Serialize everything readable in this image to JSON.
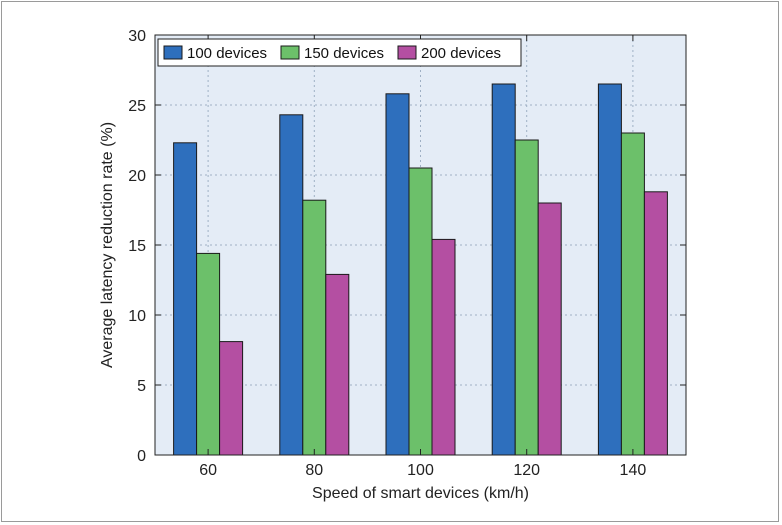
{
  "chart_data": {
    "type": "bar",
    "title": "",
    "xlabel": "Speed of smart devices (km/h)",
    "ylabel": "Average latency reduction rate (%)",
    "categories": [
      "60",
      "80",
      "100",
      "120",
      "140"
    ],
    "ylim": [
      0,
      30
    ],
    "yticks": [
      0,
      5,
      10,
      15,
      20,
      25,
      30
    ],
    "grid": true,
    "legend_position": "top-left",
    "series": [
      {
        "name": "100 devices",
        "color": "#2e6fbd",
        "values": [
          22.3,
          24.3,
          25.8,
          26.5,
          26.5
        ]
      },
      {
        "name": "150 devices",
        "color": "#6cc06a",
        "values": [
          14.4,
          18.2,
          20.5,
          22.5,
          23.0
        ]
      },
      {
        "name": "200 devices",
        "color": "#b44fa2",
        "values": [
          8.1,
          12.9,
          15.4,
          18.0,
          18.8
        ]
      }
    ],
    "colors": {
      "plot_background": "#e4ecf6",
      "grid": "#9fb0c4"
    }
  }
}
